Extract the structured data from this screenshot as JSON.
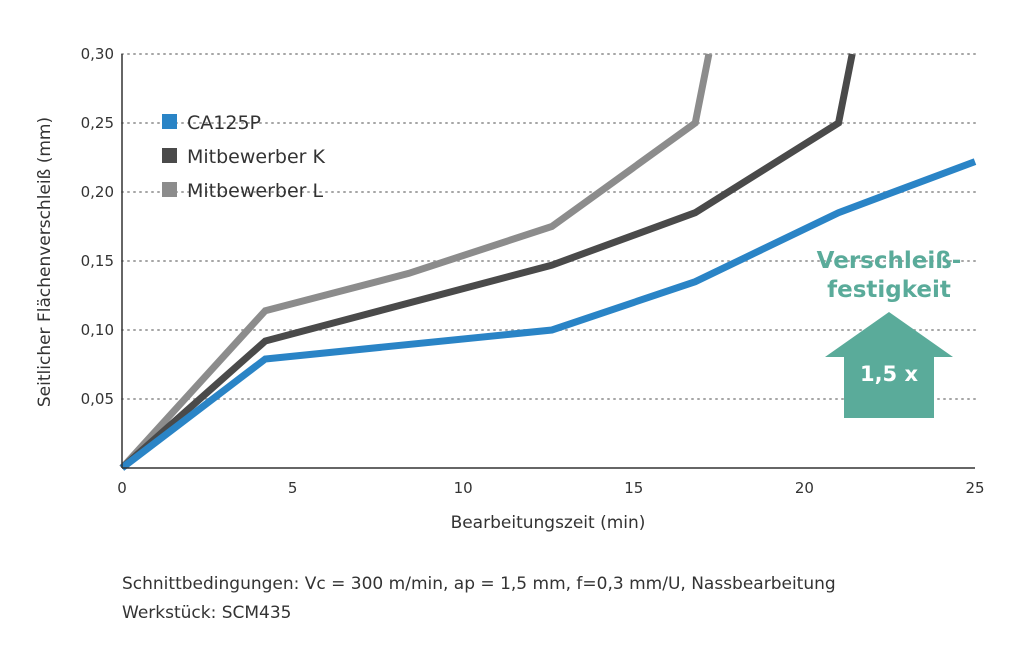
{
  "chart_data": {
    "type": "line",
    "title": "",
    "xlabel": "Bearbeitungszeit (min)",
    "ylabel": "Seitlicher Flächenverschleiß (mm)",
    "xlim": [
      0,
      25
    ],
    "ylim": [
      0,
      0.3
    ],
    "x_ticks": [
      "0",
      "5",
      "10",
      "15",
      "20",
      "25"
    ],
    "y_ticks": [
      "0,05",
      "0,10",
      "0,15",
      "0,20",
      "0,25",
      "0,30"
    ],
    "grid": "horizontal dotted",
    "legend_position": "top-left",
    "series": [
      {
        "name": "CA125P",
        "color": "#2a84c6",
        "points": [
          [
            0,
            0
          ],
          [
            4.2,
            0.079
          ],
          [
            12.6,
            0.1
          ],
          [
            16.8,
            0.135
          ],
          [
            21,
            0.185
          ],
          [
            25,
            0.222
          ]
        ]
      },
      {
        "name": "Mitbewerber K",
        "color": "#4a4a4a",
        "points": [
          [
            0,
            0
          ],
          [
            4.2,
            0.092
          ],
          [
            12.6,
            0.147
          ],
          [
            16.8,
            0.185
          ],
          [
            21,
            0.25
          ],
          [
            21.4,
            0.3
          ]
        ]
      },
      {
        "name": "Mitbewerber L",
        "color": "#8c8c8c",
        "points": [
          [
            0,
            0
          ],
          [
            4.2,
            0.114
          ],
          [
            8.4,
            0.141
          ],
          [
            12.6,
            0.175
          ],
          [
            16.8,
            0.25
          ],
          [
            17.2,
            0.3
          ]
        ]
      }
    ],
    "annotations": {
      "callout_line1": "Verschleiß-",
      "callout_line2": "festigkeit",
      "arrow_label": "1,5 x",
      "color": "#5aab9a"
    }
  },
  "footnotes": {
    "conditions": "Schnittbedingungen: Vc = 300 m/min, ap = 1,5 mm, f=0,3 mm/U, Nassbearbeitung",
    "workpiece": "Werkstück: SCM435"
  }
}
